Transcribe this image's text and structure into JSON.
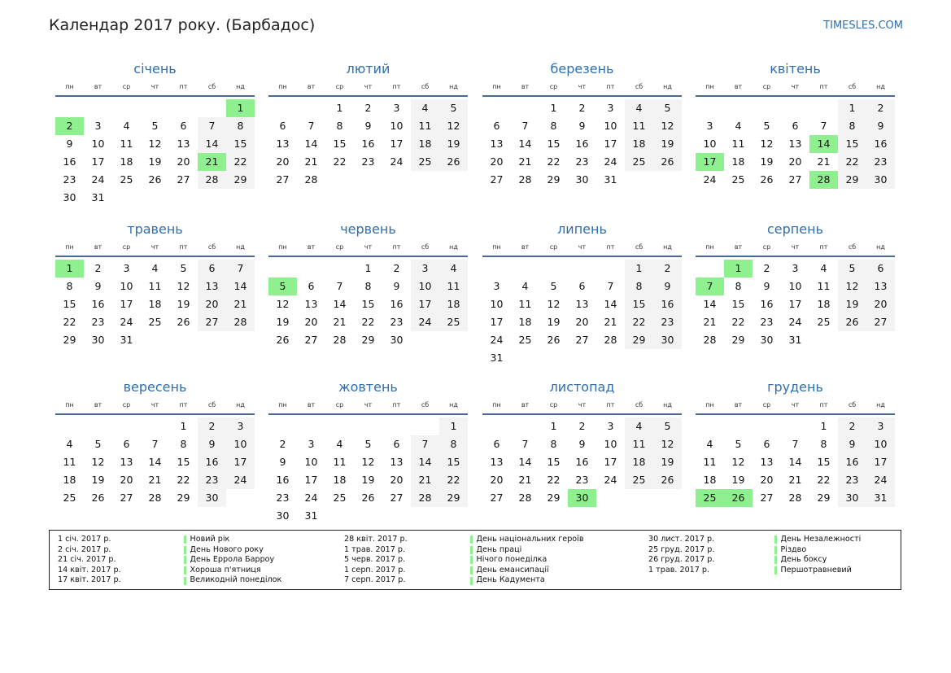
{
  "header": {
    "title": "Календар 2017 року. (Барбадос)",
    "site": "TIMESLES.COM"
  },
  "weekdays": [
    "пн",
    "вт",
    "ср",
    "чт",
    "пт",
    "сб",
    "нд"
  ],
  "months": [
    {
      "name": "січень",
      "days": 31,
      "offset": 6,
      "holidays": [
        1,
        2,
        21
      ]
    },
    {
      "name": "лютий",
      "days": 28,
      "offset": 2,
      "holidays": []
    },
    {
      "name": "березень",
      "days": 31,
      "offset": 2,
      "holidays": []
    },
    {
      "name": "квітень",
      "days": 30,
      "offset": 5,
      "holidays": [
        14,
        17,
        28
      ]
    },
    {
      "name": "травень",
      "days": 31,
      "offset": 0,
      "holidays": [
        1
      ]
    },
    {
      "name": "червень",
      "days": 30,
      "offset": 3,
      "holidays": [
        5
      ]
    },
    {
      "name": "липень",
      "days": 31,
      "offset": 5,
      "holidays": []
    },
    {
      "name": "серпень",
      "days": 31,
      "offset": 1,
      "holidays": [
        1,
        7
      ]
    },
    {
      "name": "вересень",
      "days": 30,
      "offset": 4,
      "holidays": []
    },
    {
      "name": "жовтень",
      "days": 31,
      "offset": 6,
      "holidays": []
    },
    {
      "name": "листопад",
      "days": 30,
      "offset": 2,
      "holidays": [
        30
      ]
    },
    {
      "name": "грудень",
      "days": 31,
      "offset": 4,
      "holidays": [
        25,
        26
      ]
    }
  ],
  "holidays": [
    [
      {
        "date": "1 січ. 2017 р.",
        "name": "Новий рік"
      },
      {
        "date": "2 січ. 2017 р.",
        "name": "День Нового року"
      },
      {
        "date": "21 січ. 2017 р.",
        "name": "День Еррола Барроу"
      },
      {
        "date": "14 квіт. 2017 р.",
        "name": "Хороша п'ятниця"
      },
      {
        "date": "17 квіт. 2017 р.",
        "name": "Великодній понеділок"
      }
    ],
    [
      {
        "date": "28 квіт. 2017 р.",
        "name": "День національних героїв"
      },
      {
        "date": "1 трав. 2017 р.",
        "name": "День праці"
      },
      {
        "date": "5 черв. 2017 р.",
        "name": "Нічого понеділка"
      },
      {
        "date": "1 серп. 2017 р.",
        "name": "День емансипації"
      },
      {
        "date": "7 серп. 2017 р.",
        "name": "День Кадумента"
      }
    ],
    [
      {
        "date": "30 лист. 2017 р.",
        "name": "День Незалежності"
      },
      {
        "date": "25 груд. 2017 р.",
        "name": "Різдво"
      },
      {
        "date": "26 груд. 2017 р.",
        "name": "День боксу"
      },
      {
        "date": "1 трав. 2017 р.",
        "name": "Першотравневий"
      }
    ]
  ],
  "colors": {
    "accent": "#2e6fb0",
    "holiday": "#8ef08e",
    "weekend": "#f3f3f3",
    "rule": "#4a6a94"
  }
}
